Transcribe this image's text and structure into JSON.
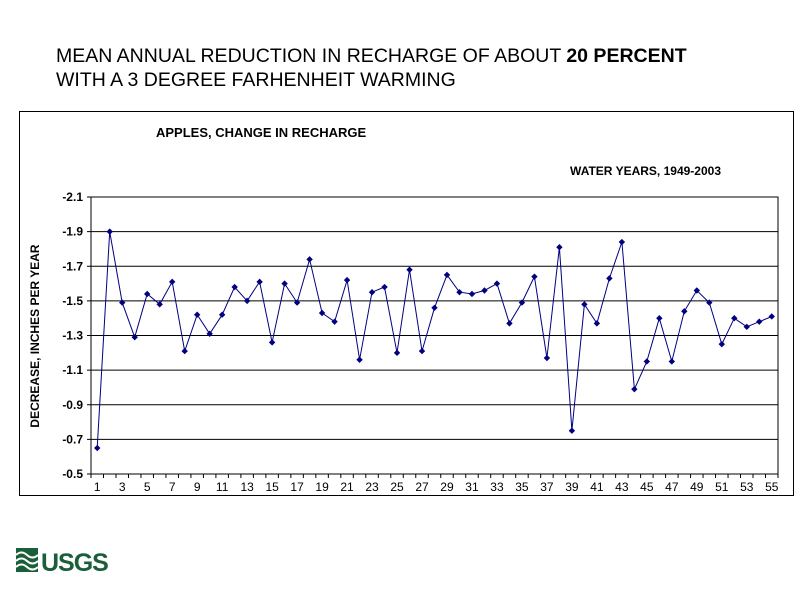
{
  "slide": {
    "title_part1": "MEAN ANNUAL REDUCTION IN RECHARGE OF ABOUT ",
    "title_bold": "20 PERCENT",
    "title_line2": "WITH A 3 DEGREE FARHENHEIT WARMING"
  },
  "logo": {
    "text": "USGS",
    "icon": "usgs-wave-icon"
  },
  "colors": {
    "series": "#000080",
    "grid": "#000000"
  },
  "chart_data": {
    "type": "line",
    "title": "APPLES, CHANGE IN RECHARGE",
    "subtitle": "WATER YEARS, 1949-2003",
    "ylabel": "DECREASE, INCHES PER YEAR",
    "xlabel": "",
    "y_reversed": true,
    "ylim": [
      -0.5,
      -2.1
    ],
    "y_ticks": [
      -2.1,
      -1.9,
      -1.7,
      -1.5,
      -1.3,
      -1.1,
      -0.9,
      -0.7,
      -0.5
    ],
    "y_tick_labels": [
      "-2.1",
      "-1.9",
      "-1.7",
      "-1.5",
      "-1.3",
      "-1.1",
      "-0.9",
      "-0.7",
      "-0.5"
    ],
    "x_tick_labels": [
      "1",
      "3",
      "5",
      "7",
      "9",
      "11",
      "13",
      "15",
      "17",
      "19",
      "21",
      "23",
      "25",
      "27",
      "29",
      "31",
      "33",
      "35",
      "37",
      "39",
      "41",
      "43",
      "45",
      "47",
      "49",
      "51",
      "53",
      "55"
    ],
    "grid": true,
    "legend": "none",
    "x": [
      1,
      2,
      3,
      4,
      5,
      6,
      7,
      8,
      9,
      10,
      11,
      12,
      13,
      14,
      15,
      16,
      17,
      18,
      19,
      20,
      21,
      22,
      23,
      24,
      25,
      26,
      27,
      28,
      29,
      30,
      31,
      32,
      33,
      34,
      35,
      36,
      37,
      38,
      39,
      40,
      41,
      42,
      43,
      44,
      45,
      46,
      47,
      48,
      49,
      50,
      51,
      52,
      53,
      54,
      55
    ],
    "series": [
      {
        "values": [
          -0.65,
          -1.9,
          -1.49,
          -1.29,
          -1.54,
          -1.48,
          -1.61,
          -1.21,
          -1.42,
          -1.31,
          -1.42,
          -1.58,
          -1.5,
          -1.61,
          -1.26,
          -1.6,
          -1.49,
          -1.74,
          -1.43,
          -1.38,
          -1.62,
          -1.16,
          -1.55,
          -1.58,
          -1.2,
          -1.68,
          -1.21,
          -1.46,
          -1.65,
          -1.55,
          -1.54,
          -1.56,
          -1.6,
          -1.37,
          -1.49,
          -1.64,
          -1.17,
          -1.81,
          -0.75,
          -1.48,
          -1.37,
          -1.63,
          -1.84,
          -0.99,
          -1.15,
          -1.4,
          -1.15,
          -1.44,
          -1.56,
          -1.49,
          -1.25,
          -1.4,
          -1.35,
          -1.38,
          -1.41
        ]
      }
    ]
  }
}
